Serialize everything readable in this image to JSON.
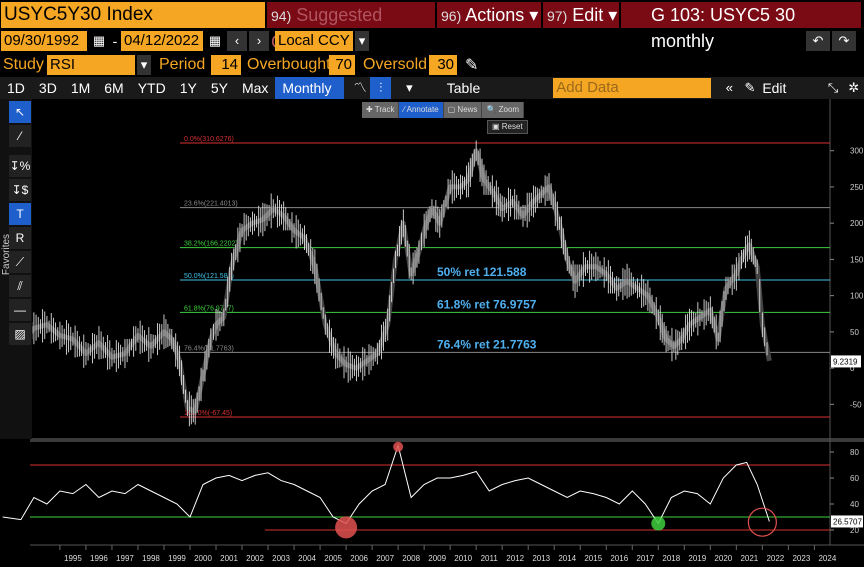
{
  "header": {
    "ticker": "USYC5Y30 Index",
    "menu": [
      {
        "num": "94)",
        "label": "Suggested Charts",
        "dim": true
      },
      {
        "num": "96)",
        "label": "Actions ▾",
        "dim": false
      },
      {
        "num": "97)",
        "label": "Edit ▾",
        "dim": false
      }
    ],
    "window_title": "G 103: USYC5 30 monthly"
  },
  "range": {
    "start": "09/30/1992",
    "separator": "-",
    "end": "04/12/2022",
    "currency": "Local CCY"
  },
  "study": {
    "study_label": "Study",
    "study_value": "RSI",
    "period_label": "Period",
    "period_value": "14",
    "overbought_label": "Overbought",
    "overbought_value": "70",
    "oversold_label": "Oversold",
    "oversold_value": "30"
  },
  "tabs": [
    "1D",
    "3D",
    "1M",
    "6M",
    "YTD",
    "1Y",
    "5Y",
    "Max"
  ],
  "frequency": "Monthly ▼",
  "table_label": "Table",
  "add_data_placeholder": "Add Data",
  "edit_chart_label": "Edit Chart",
  "mini_toolbar": [
    "✚ Track",
    "⁄ Annotate",
    "▢ News",
    "🔍 Zoom"
  ],
  "reset_label": "Reset",
  "favorites_label": "Favorites",
  "colors": {
    "accent": "#f5a623",
    "menu_bg": "#7a0a14",
    "active_tab": "#1f5fcc"
  },
  "chart_data": {
    "type": "line",
    "price_axis_ticks": [
      300,
      250,
      200,
      150,
      100,
      50,
      0,
      -50
    ],
    "rsi_axis_ticks": [
      80,
      60,
      40,
      20
    ],
    "years": [
      "1995",
      "1996",
      "1997",
      "1998",
      "1999",
      "2000",
      "2001",
      "2002",
      "2003",
      "2004",
      "2005",
      "2006",
      "2007",
      "2008",
      "2009",
      "2010",
      "2011",
      "2012",
      "2013",
      "2014",
      "2015",
      "2016",
      "2017",
      "2018",
      "2019",
      "2020",
      "2021",
      "2022",
      "2023",
      "2024"
    ],
    "fib_levels": [
      {
        "label": "0.0%(310.6276)",
        "value": 310.6276,
        "color": "#d43030"
      },
      {
        "label": "23.6%(221.4013)",
        "value": 221.4013,
        "color": "#888888"
      },
      {
        "label": "38.2%(166.2202)",
        "value": 166.2202,
        "color": "#3ecf3e"
      },
      {
        "label": "50.0%(121.588)",
        "value": 121.588,
        "color": "#3fc4e8"
      },
      {
        "label": "61.8%(76.9757)",
        "value": 76.9757,
        "color": "#3ecf3e"
      },
      {
        "label": "76.4%(21.7763)",
        "value": 21.7763,
        "color": "#888888"
      },
      {
        "label": "100.0%(-67.45)",
        "value": -67.45,
        "color": "#d43030"
      }
    ],
    "annotations": [
      "50% ret 121.588",
      "61.8% ret 76.9757",
      "76.4% ret 21.7763"
    ],
    "last_price_label": "9.2319",
    "last_rsi_label": "26.5707",
    "price_series": {
      "x": [
        1992.8,
        1993.5,
        1994.0,
        1994.5,
        1995.0,
        1995.5,
        1996.0,
        1996.5,
        1997.0,
        1997.5,
        1998.0,
        1998.5,
        1999.0,
        1999.3,
        1999.6,
        1999.9,
        2000.2,
        2000.5,
        2000.8,
        2001.0,
        2001.3,
        2001.6,
        2002.0,
        2002.4,
        2002.8,
        2003.2,
        2003.6,
        2004.0,
        2004.4,
        2004.8,
        2005.2,
        2005.6,
        2006.0,
        2006.4,
        2006.8,
        2007.2,
        2007.6,
        2007.9,
        2008.2,
        2008.5,
        2008.8,
        2009.0,
        2009.3,
        2009.6,
        2010.0,
        2010.4,
        2010.7,
        2011.0,
        2011.3,
        2011.7,
        2012.0,
        2012.4,
        2012.8,
        2013.2,
        2013.5,
        2013.8,
        2014.2,
        2014.5,
        2014.8,
        2015.2,
        2015.6,
        2016.0,
        2016.4,
        2016.8,
        2017.2,
        2017.6,
        2018.0,
        2018.3,
        2018.6,
        2018.9,
        2019.2,
        2019.6,
        2020.0,
        2020.3,
        2020.6,
        2021.0,
        2021.2,
        2021.5,
        2021.8,
        2022.0,
        2022.27
      ],
      "y": [
        20,
        35,
        55,
        60,
        45,
        40,
        20,
        35,
        15,
        20,
        45,
        30,
        50,
        40,
        10,
        -55,
        -60,
        -10,
        40,
        60,
        70,
        140,
        190,
        200,
        205,
        220,
        210,
        190,
        180,
        140,
        60,
        20,
        5,
        0,
        10,
        20,
        60,
        150,
        200,
        130,
        160,
        190,
        220,
        200,
        250,
        250,
        260,
        300,
        260,
        240,
        220,
        230,
        210,
        230,
        240,
        250,
        200,
        150,
        120,
        140,
        140,
        130,
        110,
        120,
        110,
        100,
        70,
        40,
        30,
        40,
        60,
        70,
        80,
        40,
        110,
        130,
        150,
        170,
        140,
        60,
        10
      ]
    },
    "rsi_series": {
      "x": [
        1992.8,
        1993.5,
        1994.0,
        1994.5,
        1995.0,
        1995.5,
        1996.0,
        1996.5,
        1997.0,
        1997.5,
        1998.0,
        1998.5,
        1999.0,
        1999.5,
        2000.0,
        2000.5,
        2001.0,
        2001.5,
        2002.0,
        2002.5,
        2003.0,
        2003.5,
        2004.0,
        2004.5,
        2005.0,
        2005.5,
        2006.0,
        2006.5,
        2007.0,
        2007.5,
        2008.0,
        2008.5,
        2009.0,
        2009.5,
        2010.0,
        2010.5,
        2011.0,
        2011.5,
        2012.0,
        2012.5,
        2013.0,
        2013.5,
        2014.0,
        2014.5,
        2015.0,
        2015.5,
        2016.0,
        2016.5,
        2017.0,
        2017.5,
        2018.0,
        2018.5,
        2019.0,
        2019.5,
        2020.0,
        2020.5,
        2021.0,
        2021.4,
        2021.8,
        2022.27
      ],
      "y": [
        30,
        28,
        45,
        40,
        50,
        48,
        55,
        45,
        50,
        48,
        55,
        50,
        45,
        40,
        30,
        55,
        60,
        62,
        58,
        62,
        64,
        58,
        55,
        50,
        45,
        30,
        25,
        40,
        50,
        55,
        85,
        45,
        55,
        60,
        60,
        62,
        65,
        50,
        55,
        58,
        60,
        55,
        50,
        45,
        50,
        48,
        45,
        40,
        50,
        40,
        25,
        45,
        50,
        48,
        40,
        60,
        70,
        72,
        55,
        26.5707
      ]
    },
    "rsi_overbought": 70,
    "rsi_oversold": 30,
    "grid": true
  }
}
